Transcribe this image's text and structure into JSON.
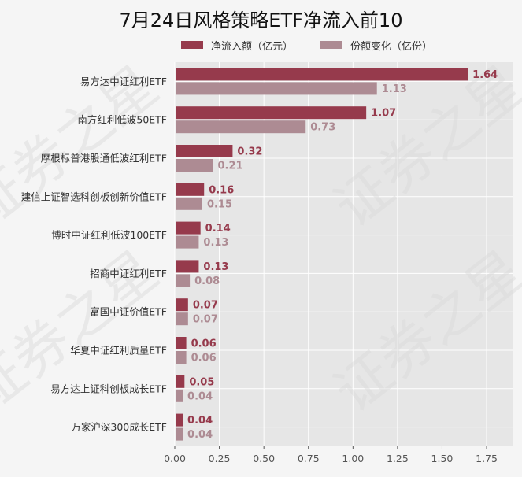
{
  "chart_data": {
    "type": "bar",
    "orientation": "horizontal",
    "title": "7月24日风格策略ETF净流入前10",
    "categories": [
      "易方达中证红利ETF",
      "南方红利低波50ETF",
      "摩根标普港股通低波红利ETF",
      "建信上证智选科创板创新价值ETF",
      "博时中证红利低波100ETF",
      "招商中证红利ETF",
      "富国中证价值ETF",
      "华夏中证红利质量ETF",
      "易方达上证科创板成长ETF",
      "万家沪深300成长ETF"
    ],
    "series": [
      {
        "name": "净流入额（亿元）",
        "values": [
          1.64,
          1.07,
          0.32,
          0.16,
          0.14,
          0.13,
          0.07,
          0.06,
          0.05,
          0.04
        ],
        "labels": [
          "1.64",
          "1.07",
          "0.32",
          "0.16",
          "0.14",
          "0.13",
          "0.07",
          "0.06",
          "0.05",
          "0.04"
        ],
        "color": "#963a4c",
        "label_color": "#963a4c"
      },
      {
        "name": "份额变化（亿份）",
        "values": [
          1.13,
          0.73,
          0.21,
          0.15,
          0.13,
          0.08,
          0.07,
          0.06,
          0.04,
          0.04
        ],
        "labels": [
          "1.13",
          "0.73",
          "0.21",
          "0.15",
          "0.13",
          "0.08",
          "0.07",
          "0.06",
          "0.04",
          "0.04"
        ],
        "color": "#ad8b93",
        "label_color": "#ad8b93"
      }
    ],
    "xlim": [
      0,
      1.9
    ],
    "xticks": [
      "0.00",
      "0.25",
      "0.50",
      "0.75",
      "1.00",
      "1.25",
      "1.50",
      "1.75"
    ],
    "xtick_values": [
      0,
      0.25,
      0.5,
      0.75,
      1.0,
      1.25,
      1.5,
      1.75
    ],
    "grid": true,
    "legend_position": "top",
    "plot_background": "#e6e6e6",
    "watermark": "证券之星"
  }
}
